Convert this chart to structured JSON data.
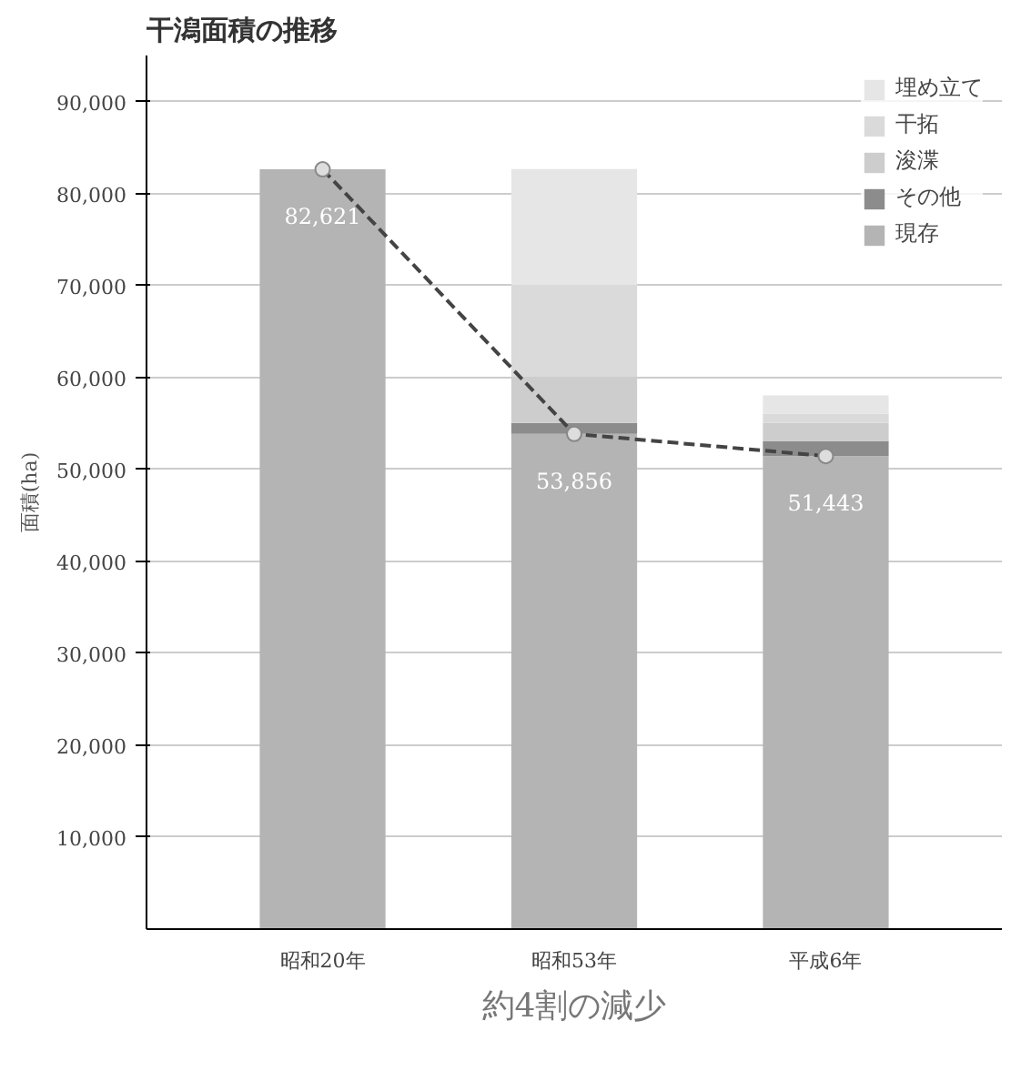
{
  "chart_data": {
    "type": "bar",
    "title": "干潟面積の推移",
    "ylabel": "面積(ha)",
    "categories": [
      "昭和20年",
      "昭和53年",
      "平成6年"
    ],
    "stacked": true,
    "series": [
      {
        "name": "現存",
        "color": "#b4b4b4",
        "values": [
          82621,
          53856,
          51443
        ],
        "value_labels": [
          "82,621",
          "53,856",
          "51,443"
        ]
      },
      {
        "name": "その他",
        "color": "#8c8c8c",
        "values": [
          null,
          1200,
          1600
        ]
      },
      {
        "name": "浚渫",
        "color": "#cdcdcd",
        "values": [
          null,
          5000,
          2000
        ]
      },
      {
        "name": "干拓",
        "color": "#dadada",
        "values": [
          null,
          10000,
          1000
        ]
      },
      {
        "name": "埋め立て",
        "color": "#e6e6e6",
        "values": [
          null,
          12600,
          2000
        ]
      },
      {
        "type": "line",
        "color": "#444444",
        "values": [
          82621,
          53856,
          51443
        ],
        "marker": "circle",
        "line_style": "dashed"
      }
    ],
    "ylim": [
      0,
      95000
    ],
    "yticks": [
      {
        "value": 10000,
        "label": "10,000"
      },
      {
        "value": 20000,
        "label": "20,000"
      },
      {
        "value": 30000,
        "label": "30,000"
      },
      {
        "value": 40000,
        "label": "40,000"
      },
      {
        "value": 50000,
        "label": "50,000"
      },
      {
        "value": 60000,
        "label": "60,000"
      },
      {
        "value": 70000,
        "label": "70,000"
      },
      {
        "value": 80000,
        "label": "80,000"
      },
      {
        "value": 90000,
        "label": "90,000"
      }
    ],
    "grid": "y",
    "legend": "top right",
    "annotations": [
      "約4割の減少"
    ]
  }
}
